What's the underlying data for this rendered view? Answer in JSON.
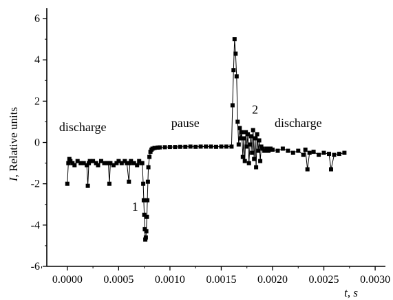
{
  "chart_data": {
    "type": "scatter",
    "title": "",
    "xlabel_var": "t",
    "xlabel_unit": "s",
    "ylabel_var": "I",
    "ylabel_unit": "Relative units",
    "xlim": [
      -0.0002,
      0.0031
    ],
    "ylim": [
      -6,
      6.5
    ],
    "x_ticks": [
      0.0,
      0.0005,
      0.001,
      0.0015,
      0.002,
      0.0025,
      0.003
    ],
    "x_tick_labels": [
      "0.0000",
      "0.0005",
      "0.0010",
      "0.0015",
      "0.0020",
      "0.0025",
      "0.0030"
    ],
    "y_ticks": [
      -6,
      -4,
      -2,
      0,
      2,
      4,
      6
    ],
    "y_tick_labels": [
      "-6",
      "-4",
      "-2",
      "0",
      "2",
      "4",
      "6"
    ],
    "grid": false,
    "annotations": [
      {
        "text": "discharge",
        "x": 0.00015,
        "y": 0.55
      },
      {
        "text": "pause",
        "x": 0.00115,
        "y": 0.75
      },
      {
        "text": "discharge",
        "x": 0.00225,
        "y": 0.75
      },
      {
        "text": "1",
        "x": 0.00066,
        "y": -3.3
      },
      {
        "text": "2",
        "x": 0.00183,
        "y": 1.4
      }
    ],
    "series": [
      {
        "marker": "square",
        "color": "#000000",
        "x": [
          0.0,
          1e-05,
          2e-05,
          3e-05,
          5e-05,
          7e-05,
          0.0001,
          0.00013,
          0.00016,
          0.00019,
          0.0002,
          0.00021,
          0.00022,
          0.00025,
          0.00028,
          0.0003,
          0.00033,
          0.00036,
          0.00039,
          0.0004,
          0.00041,
          0.00042,
          0.00045,
          0.00048,
          0.0005,
          0.00053,
          0.00056,
          0.00058,
          0.0006,
          0.00061,
          0.00062,
          0.00065,
          0.00068,
          0.0007,
          0.00072,
          0.00073,
          0.00074,
          0.000745,
          0.00075,
          0.000755,
          0.00076,
          0.000765,
          0.00077,
          0.000775,
          0.00078,
          0.000785,
          0.00079,
          0.0008,
          0.00081,
          0.00082,
          0.00083,
          0.00085,
          0.00088,
          0.0009,
          0.00095,
          0.001,
          0.00105,
          0.0011,
          0.00115,
          0.0012,
          0.00125,
          0.0013,
          0.00135,
          0.0014,
          0.00145,
          0.0015,
          0.00155,
          0.0016,
          0.00161,
          0.00162,
          0.00163,
          0.00164,
          0.00165,
          0.00166,
          0.00167,
          0.00168,
          0.00169,
          0.0017,
          0.00171,
          0.00172,
          0.00173,
          0.00174,
          0.00175,
          0.00176,
          0.00177,
          0.00178,
          0.00179,
          0.0018,
          0.00181,
          0.00182,
          0.00183,
          0.00184,
          0.00185,
          0.00186,
          0.00187,
          0.00188,
          0.00189,
          0.0019,
          0.00192,
          0.00194,
          0.00196,
          0.00198,
          0.002,
          0.00205,
          0.0021,
          0.00215,
          0.0022,
          0.00225,
          0.0023,
          0.00232,
          0.00234,
          0.00236,
          0.0024,
          0.00245,
          0.0025,
          0.00255,
          0.00257,
          0.0026,
          0.00265,
          0.0027
        ],
        "y": [
          -2.0,
          -1.0,
          -0.8,
          -0.9,
          -1.0,
          -1.1,
          -0.9,
          -1.0,
          -1.0,
          -1.1,
          -2.1,
          -1.0,
          -0.9,
          -0.9,
          -1.0,
          -1.1,
          -0.9,
          -1.0,
          -1.0,
          -1.0,
          -2.0,
          -1.0,
          -1.1,
          -1.0,
          -0.9,
          -1.0,
          -0.9,
          -1.0,
          -1.9,
          -1.0,
          -0.9,
          -1.0,
          -1.1,
          -0.9,
          -1.0,
          -1.0,
          -2.0,
          -2.8,
          -3.5,
          -4.2,
          -4.7,
          -4.6,
          -4.3,
          -3.6,
          -2.8,
          -1.9,
          -1.2,
          -0.7,
          -0.45,
          -0.35,
          -0.3,
          -0.27,
          -0.25,
          -0.24,
          -0.23,
          -0.22,
          -0.22,
          -0.21,
          -0.21,
          -0.2,
          -0.21,
          -0.2,
          -0.2,
          -0.2,
          -0.21,
          -0.2,
          -0.2,
          -0.2,
          1.8,
          3.5,
          5.0,
          4.3,
          3.2,
          1.0,
          -0.1,
          0.7,
          0.2,
          0.5,
          -0.7,
          0.2,
          -0.9,
          0.5,
          -0.2,
          0.4,
          -1.0,
          -0.1,
          0.3,
          -0.5,
          0.6,
          -0.8,
          0.2,
          -1.2,
          0.4,
          -0.4,
          0.1,
          -0.9,
          -0.2,
          -0.3,
          -0.4,
          -0.3,
          -0.4,
          -0.3,
          -0.35,
          -0.4,
          -0.3,
          -0.4,
          -0.5,
          -0.4,
          -0.6,
          -0.35,
          -1.3,
          -0.5,
          -0.45,
          -0.6,
          -0.5,
          -0.55,
          -1.3,
          -0.6,
          -0.55,
          -0.5
        ]
      }
    ]
  }
}
